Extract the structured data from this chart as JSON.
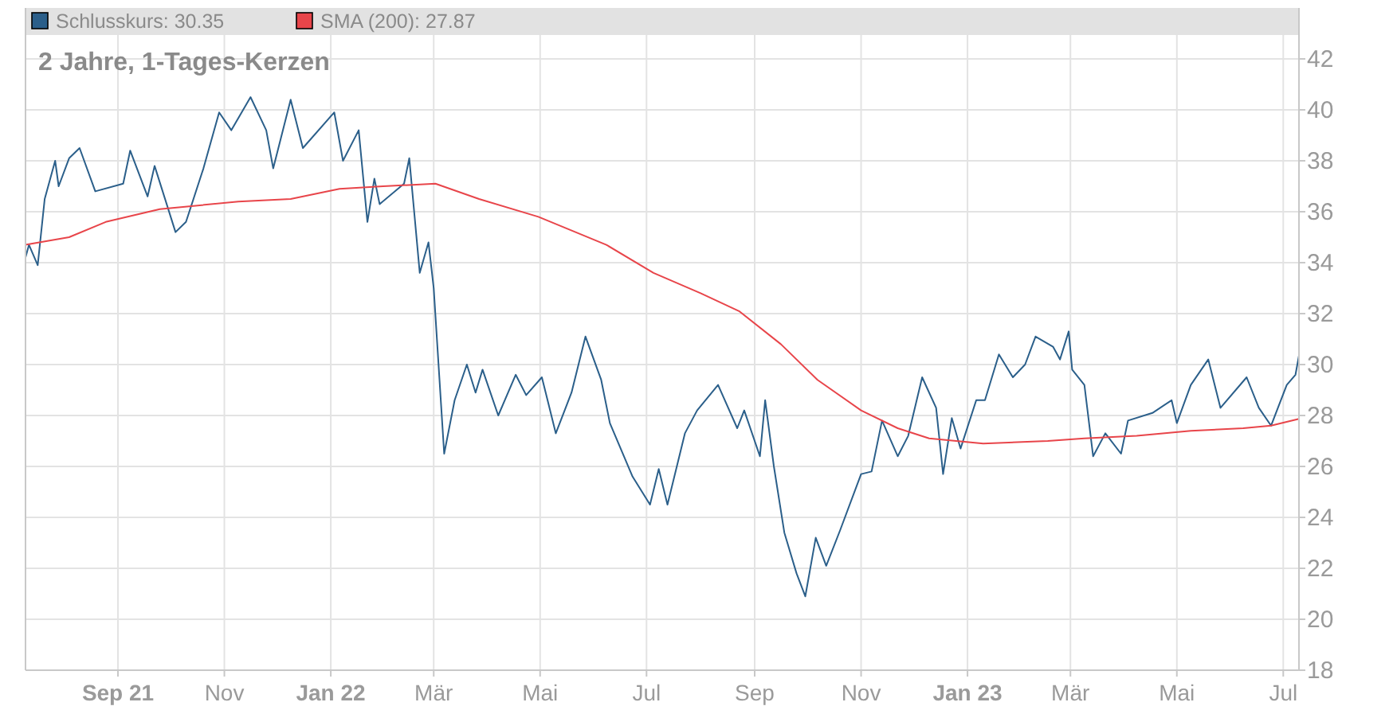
{
  "chart_data": {
    "type": "line",
    "title": "2 Jahre, 1-Tages-Kerzen",
    "x": [
      "2021-07-10",
      "2021-07-12",
      "2021-07-17",
      "2021-07-21",
      "2021-07-27",
      "2021-07-29",
      "2021-08-04",
      "2021-08-10",
      "2021-08-19",
      "2021-09-04",
      "2021-09-08",
      "2021-09-18",
      "2021-09-22",
      "2021-10-04",
      "2021-10-10",
      "2021-10-20",
      "2021-10-29",
      "2021-11-05",
      "2021-11-16",
      "2021-11-25",
      "2021-11-29",
      "2021-12-09",
      "2021-12-16",
      "2022-01-03",
      "2022-01-08",
      "2022-01-17",
      "2022-01-22",
      "2022-01-26",
      "2022-01-29",
      "2022-02-12",
      "2022-02-15",
      "2022-02-21",
      "2022-02-26",
      "2022-03-01",
      "2022-03-07",
      "2022-03-13",
      "2022-03-20",
      "2022-03-25",
      "2022-03-29",
      "2022-04-07",
      "2022-04-17",
      "2022-04-23",
      "2022-05-02",
      "2022-05-10",
      "2022-05-19",
      "2022-05-27",
      "2022-06-05",
      "2022-06-10",
      "2022-06-23",
      "2022-07-03",
      "2022-07-08",
      "2022-07-13",
      "2022-07-23",
      "2022-07-30",
      "2022-08-11",
      "2022-08-22",
      "2022-08-26",
      "2022-09-04",
      "2022-09-07",
      "2022-09-12",
      "2022-09-18",
      "2022-09-25",
      "2022-09-30",
      "2022-10-06",
      "2022-10-12",
      "2022-10-20",
      "2022-11-01",
      "2022-11-07",
      "2022-11-13",
      "2022-11-22",
      "2022-11-28",
      "2022-12-06",
      "2022-12-14",
      "2022-12-18",
      "2022-12-23",
      "2022-12-28",
      "2023-01-06",
      "2023-01-11",
      "2023-01-19",
      "2023-01-27",
      "2023-02-03",
      "2023-02-09",
      "2023-02-19",
      "2023-02-23",
      "2023-02-28",
      "2023-03-02",
      "2023-03-09",
      "2023-03-14",
      "2023-03-21",
      "2023-03-30",
      "2023-04-03",
      "2023-04-17",
      "2023-04-28",
      "2023-05-01",
      "2023-05-09",
      "2023-05-19",
      "2023-05-26",
      "2023-06-10",
      "2023-06-17",
      "2023-06-24",
      "2023-07-03",
      "2023-07-08",
      "2023-07-10"
    ],
    "series": [
      {
        "name": "Schlusskurs: 30.35",
        "color": "#2b5f8a",
        "values": [
          34.2,
          34.7,
          33.9,
          36.5,
          38.0,
          37.0,
          38.1,
          38.5,
          36.8,
          37.1,
          38.4,
          36.6,
          37.8,
          35.2,
          35.6,
          37.7,
          39.9,
          39.2,
          40.5,
          39.2,
          37.7,
          40.4,
          38.5,
          39.9,
          38.0,
          39.2,
          35.6,
          37.3,
          36.3,
          37.1,
          38.1,
          33.6,
          34.8,
          33.0,
          26.5,
          28.6,
          30.0,
          28.9,
          29.8,
          28.0,
          29.6,
          28.8,
          29.5,
          27.3,
          28.9,
          31.1,
          29.4,
          27.7,
          25.6,
          24.5,
          25.9,
          24.5,
          27.3,
          28.2,
          29.2,
          27.5,
          28.2,
          26.4,
          28.6,
          26.0,
          23.4,
          21.8,
          20.9,
          23.2,
          22.1,
          23.5,
          25.7,
          25.8,
          27.8,
          26.4,
          27.2,
          29.5,
          28.3,
          25.7,
          27.9,
          26.7,
          28.6,
          28.6,
          30.4,
          29.5,
          30.0,
          31.1,
          30.7,
          30.2,
          31.3,
          29.8,
          29.2,
          26.4,
          27.3,
          26.5,
          27.8,
          28.1,
          28.6,
          27.7,
          29.2,
          30.2,
          28.3,
          29.5,
          28.3,
          27.6,
          29.2,
          29.6,
          30.35
        ]
      },
      {
        "name": "SMA (200): 27.87",
        "color": "#e8454a",
        "x": [
          "2021-07-10",
          "2021-08-04",
          "2021-08-25",
          "2021-09-25",
          "2021-11-09",
          "2021-12-09",
          "2022-01-06",
          "2022-01-31",
          "2022-03-02",
          "2022-03-27",
          "2022-04-30",
          "2022-06-08",
          "2022-07-05",
          "2022-08-01",
          "2022-08-23",
          "2022-09-16",
          "2022-10-07",
          "2022-11-01",
          "2022-11-22",
          "2022-12-10",
          "2023-01-10",
          "2023-02-16",
          "2023-03-09",
          "2023-04-08",
          "2023-05-09",
          "2023-06-08",
          "2023-06-24",
          "2023-07-10"
        ],
        "values": [
          34.7,
          35.0,
          35.6,
          36.1,
          36.4,
          36.5,
          36.9,
          37.0,
          37.1,
          36.5,
          35.8,
          34.7,
          33.6,
          32.8,
          32.1,
          30.8,
          29.4,
          28.2,
          27.5,
          27.1,
          26.9,
          27.0,
          27.1,
          27.2,
          27.4,
          27.5,
          27.6,
          27.87
        ]
      }
    ],
    "xlim": [
      "2021-07-10",
      "2023-07-10"
    ],
    "xticks": [
      {
        "value": "2021-09-01",
        "label": "Sep 21"
      },
      {
        "value": "2021-11-01",
        "label": "Nov"
      },
      {
        "value": "2022-01-01",
        "label": "Jan 22"
      },
      {
        "value": "2022-03-01",
        "label": "Mär"
      },
      {
        "value": "2022-05-01",
        "label": "Mai"
      },
      {
        "value": "2022-07-01",
        "label": "Jul"
      },
      {
        "value": "2022-09-01",
        "label": "Sep"
      },
      {
        "value": "2022-11-01",
        "label": "Nov"
      },
      {
        "value": "2023-01-01",
        "label": "Jan 23"
      },
      {
        "value": "2023-03-01",
        "label": "Mär"
      },
      {
        "value": "2023-05-01",
        "label": "Mai"
      },
      {
        "value": "2023-07-01",
        "label": "Jul"
      }
    ],
    "ylim": [
      18,
      44
    ],
    "yticks": [
      18,
      20,
      22,
      24,
      26,
      28,
      30,
      32,
      34,
      36,
      38,
      40,
      42
    ],
    "grid": true,
    "legend": "top",
    "marker": "none",
    "line_style": "solid"
  }
}
